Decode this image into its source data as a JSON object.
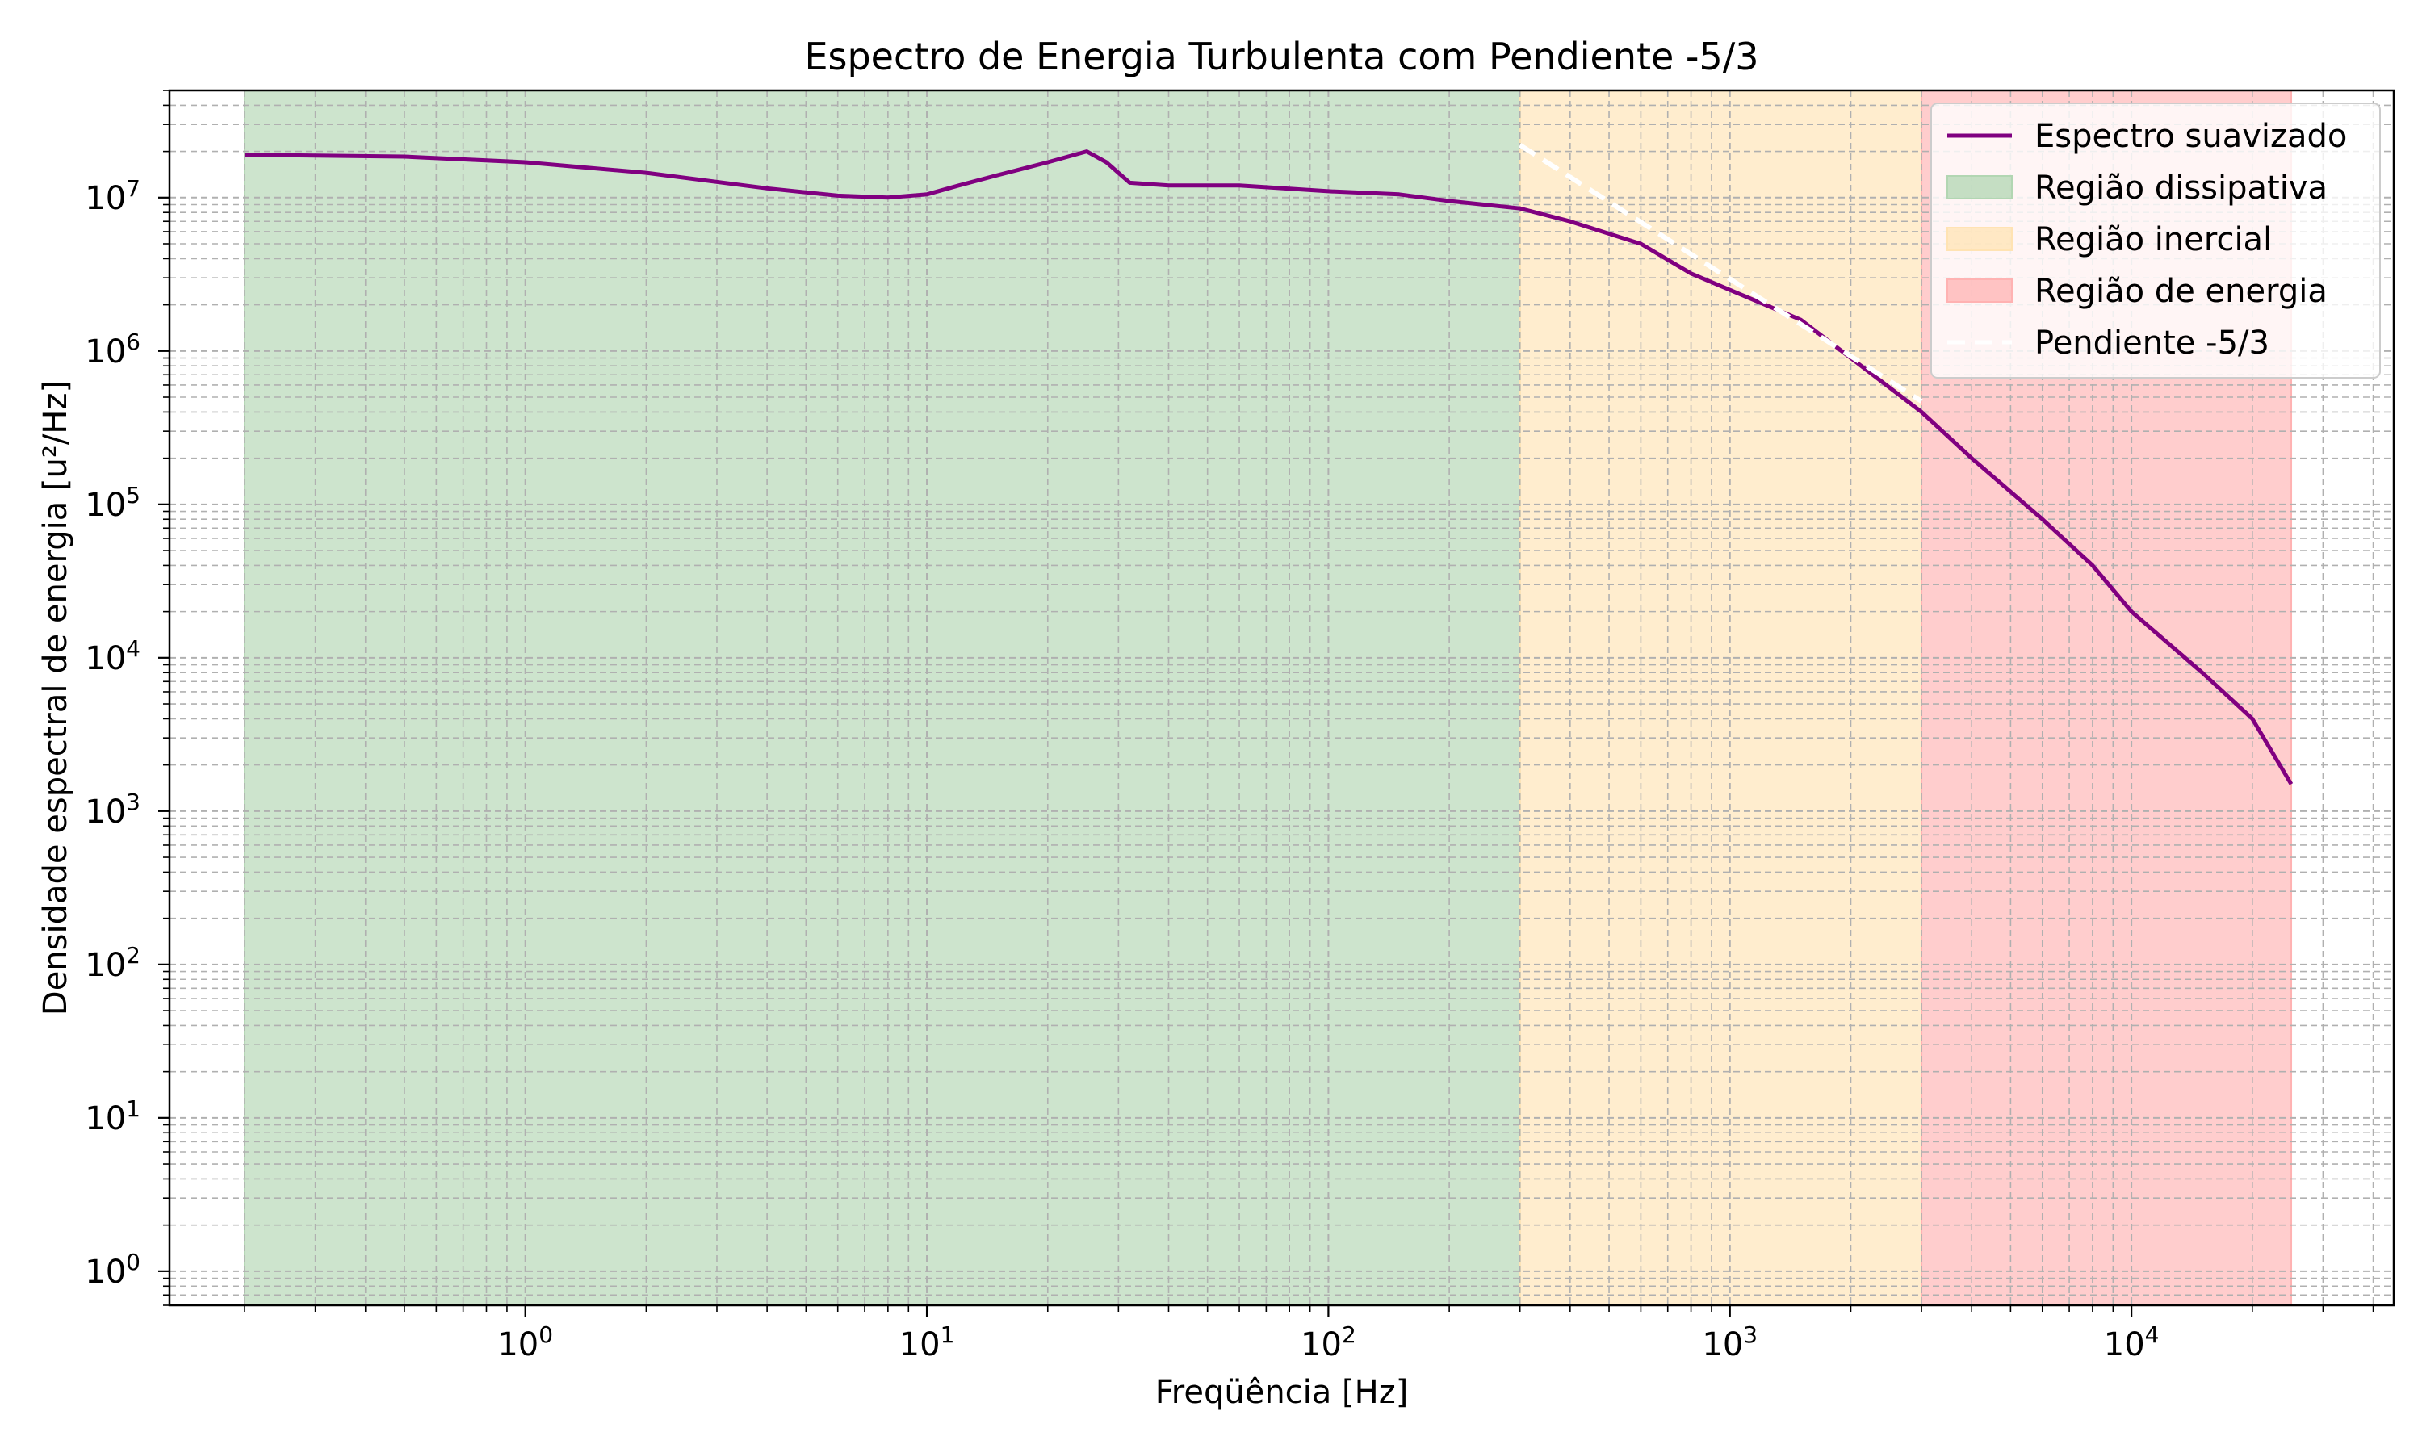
{
  "chart_data": {
    "type": "line",
    "title": "Espectro de Energia Turbulenta com Pendiente -5/3",
    "xlabel": "Freqüência [Hz]",
    "ylabel": "Densidade espectral de energia [u²/Hz]",
    "xscale": "log",
    "yscale": "log",
    "xlim": [
      0.13,
      45000
    ],
    "ylim": [
      0.6,
      50000000
    ],
    "x_tick_labels": [
      {
        "value": 1,
        "base": "10",
        "exp": "0"
      },
      {
        "value": 10,
        "base": "10",
        "exp": "1"
      },
      {
        "value": 100,
        "base": "10",
        "exp": "2"
      },
      {
        "value": 1000,
        "base": "10",
        "exp": "3"
      },
      {
        "value": 10000,
        "base": "10",
        "exp": "4"
      }
    ],
    "y_tick_labels": [
      {
        "value": 1,
        "base": "10",
        "exp": "0"
      },
      {
        "value": 10,
        "base": "10",
        "exp": "1"
      },
      {
        "value": 100,
        "base": "10",
        "exp": "2"
      },
      {
        "value": 1000,
        "base": "10",
        "exp": "3"
      },
      {
        "value": 10000,
        "base": "10",
        "exp": "4"
      },
      {
        "value": 100000,
        "base": "10",
        "exp": "5"
      },
      {
        "value": 1000000,
        "base": "10",
        "exp": "6"
      },
      {
        "value": 10000000,
        "base": "10",
        "exp": "7"
      }
    ],
    "grid": true,
    "legend_position": "top-right",
    "regions": [
      {
        "name": "Região dissipativa",
        "x_start": 0.2,
        "x_end": 300,
        "color": "#b2d6b2"
      },
      {
        "name": "Região inercial",
        "x_start": 300,
        "x_end": 3000,
        "color": "#ffe3b3"
      },
      {
        "name": "Região de energia",
        "x_start": 3000,
        "x_end": 25000,
        "color": "#ffb2b2"
      }
    ],
    "series": [
      {
        "name": "Espectro suavizado",
        "color": "#800080",
        "x": [
          0.2,
          0.5,
          1,
          2,
          4,
          6,
          8,
          10,
          12,
          15,
          20,
          25,
          28,
          32,
          40,
          60,
          100,
          150,
          200,
          300,
          400,
          600,
          800,
          1000,
          1500,
          2000,
          3000,
          4000,
          6000,
          8000,
          10000,
          15000,
          20000,
          25000
        ],
        "y": [
          19000000,
          18500000,
          17000000,
          14500000,
          11500000,
          10300000,
          10000000,
          10500000,
          12000000,
          14000000,
          17000000,
          20000000,
          17000000,
          12500000,
          12000000,
          12000000,
          11000000,
          10500000,
          9500000,
          8500000,
          7000000,
          5000000,
          3200000,
          2500000,
          1600000,
          900000,
          400000,
          200000,
          80000,
          40000,
          20000,
          8000,
          4000,
          1500
        ]
      },
      {
        "name": "Pendiente -5/3",
        "color": "#ffffff",
        "x": [
          300,
          3000
        ],
        "y": [
          22000000,
          470000
        ]
      }
    ]
  }
}
